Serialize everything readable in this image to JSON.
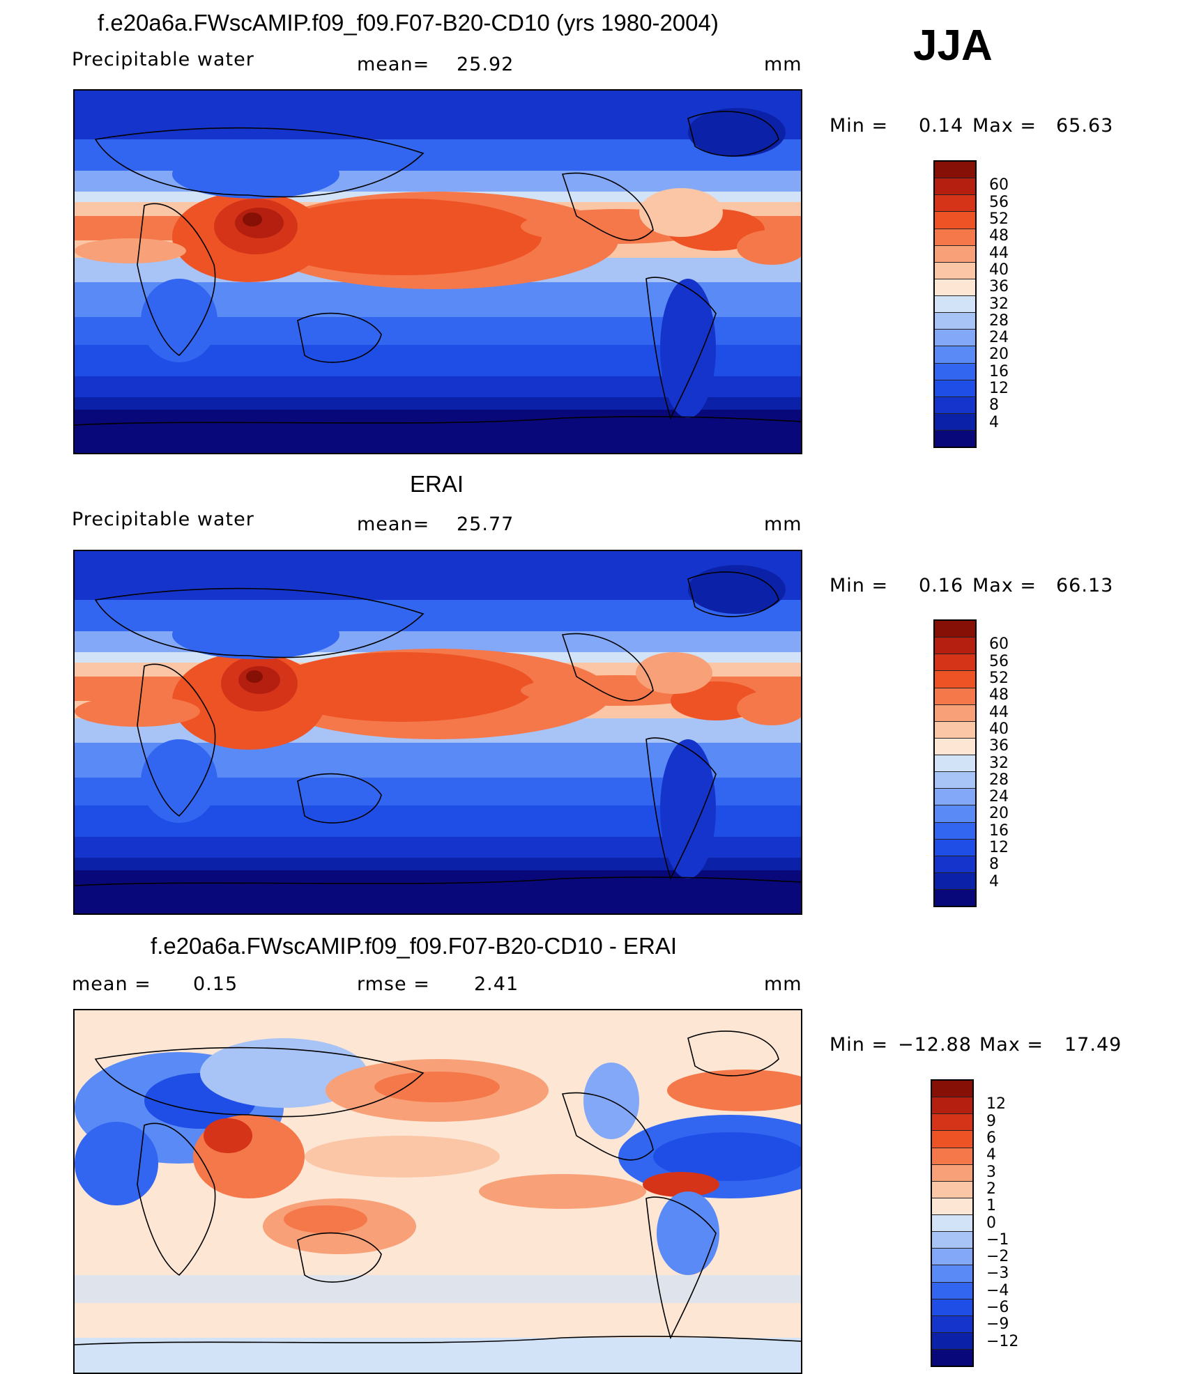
{
  "season": "JJA",
  "colors": {
    "model_scale": [
      "#08087a",
      "#0b22a8",
      "#1434cc",
      "#1e4ee6",
      "#3366f0",
      "#5a8af5",
      "#82a8f7",
      "#a8c3f5",
      "#d2e3f7",
      "#fde6d4",
      "#fbc6a6",
      "#f8a077",
      "#f5784a",
      "#ee5326",
      "#d63418",
      "#b41f10",
      "#861006"
    ],
    "diff_scale": [
      "#08087a",
      "#0b22a8",
      "#1434cc",
      "#1e4ee6",
      "#3366f0",
      "#5a8af5",
      "#82a8f7",
      "#a8c3f5",
      "#d2e3f7",
      "#fde6d4",
      "#fbc6a6",
      "#f8a077",
      "#f5784a",
      "#ee5326",
      "#d63418",
      "#b41f10",
      "#861006"
    ]
  },
  "panels": [
    {
      "title": "f.e20a6a.FWscAMIP.f09_f09.F07-B20-CD10 (yrs 1980-2004)",
      "left_label": "Precipitable  water",
      "center_label": "mean=",
      "center_value": "25.92",
      "units": "mm",
      "min_label": "Min  =",
      "min_value": "0.14",
      "max_label": "Max  =",
      "max_value": "65.63",
      "levels": [
        "60",
        "56",
        "52",
        "48",
        "44",
        "40",
        "36",
        "32",
        "28",
        "24",
        "20",
        "16",
        "12",
        "8",
        "4"
      ]
    },
    {
      "title": "ERAI",
      "left_label": "Precipitable  water",
      "center_label": "mean=",
      "center_value": "25.77",
      "units": "mm",
      "min_label": "Min  =",
      "min_value": "0.16",
      "max_label": "Max  =",
      "max_value": "66.13",
      "levels": [
        "60",
        "56",
        "52",
        "48",
        "44",
        "40",
        "36",
        "32",
        "28",
        "24",
        "20",
        "16",
        "12",
        "8",
        "4"
      ]
    },
    {
      "title": "f.e20a6a.FWscAMIP.f09_f09.F07-B20-CD10 - ERAI",
      "left_label": "mean  =",
      "left_value": "0.15",
      "center_label": "rmse  =",
      "center_value": "2.41",
      "units": "mm",
      "min_label": "Min  =",
      "min_value": "−12.88",
      "max_label": "Max  =",
      "max_value": "17.49",
      "levels": [
        "12",
        "9",
        "6",
        "4",
        "3",
        "2",
        "1",
        "0",
        "−1",
        "−2",
        "−3",
        "−4",
        "−6",
        "−9",
        "−12"
      ]
    }
  ]
}
